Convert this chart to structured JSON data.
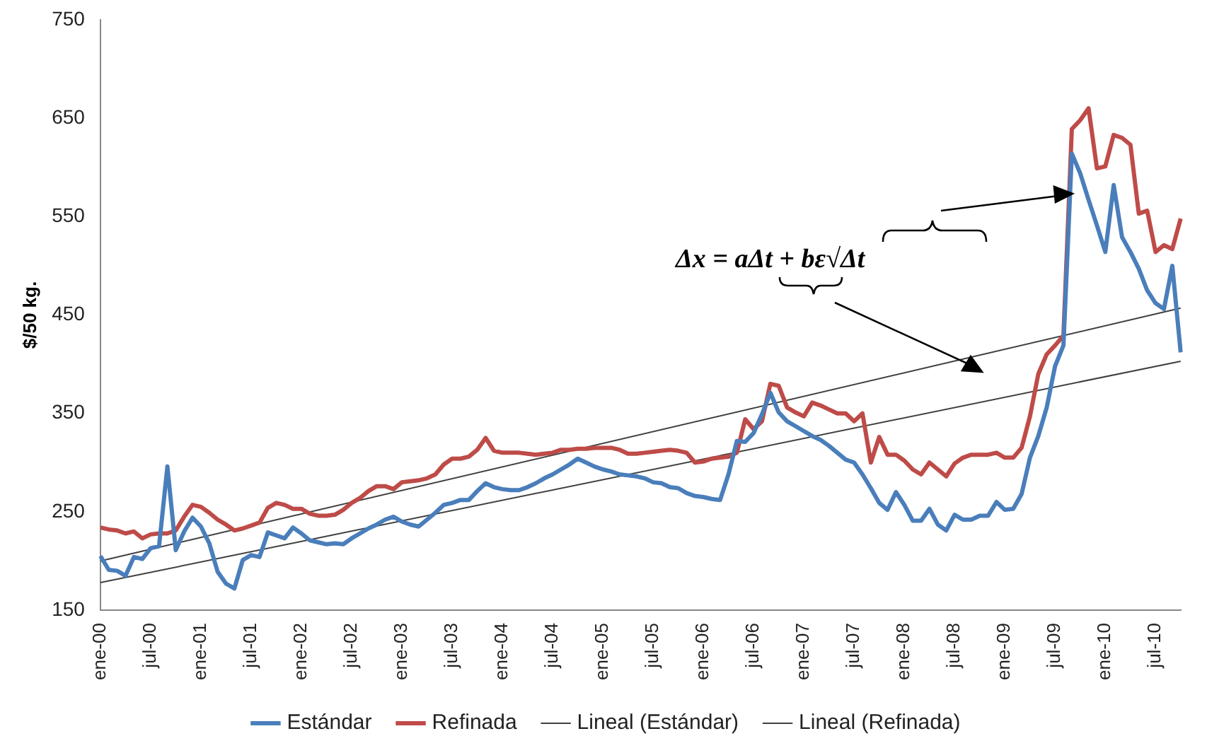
{
  "chart_data": {
    "type": "line",
    "ylabel": "$/50 kg.",
    "ylim": [
      150,
      750
    ],
    "yticks": [
      150,
      250,
      350,
      450,
      550,
      650,
      750
    ],
    "grid": false,
    "legend": "bottom",
    "marker": "none",
    "line_style": "solid",
    "annotations": [
      "Δx = aΔt + bε√Δt"
    ],
    "categories": [
      "ene-00",
      null,
      null,
      null,
      null,
      null,
      "jul-00",
      null,
      null,
      null,
      null,
      null,
      "ene-01",
      null,
      null,
      null,
      null,
      null,
      "jul-01",
      null,
      null,
      null,
      null,
      null,
      "ene-02",
      null,
      null,
      null,
      null,
      null,
      "jul-02",
      null,
      null,
      null,
      null,
      null,
      "ene-03",
      null,
      null,
      null,
      null,
      null,
      "jul-03",
      null,
      null,
      null,
      null,
      null,
      "ene-04",
      null,
      null,
      null,
      null,
      null,
      "jul-04",
      null,
      null,
      null,
      null,
      null,
      "ene-05",
      null,
      null,
      null,
      null,
      null,
      "jul-05",
      null,
      null,
      null,
      null,
      null,
      "ene-06",
      null,
      null,
      null,
      null,
      null,
      "jul-06",
      null,
      null,
      null,
      null,
      null,
      "ene-07",
      null,
      null,
      null,
      null,
      null,
      "jul-07",
      null,
      null,
      null,
      null,
      null,
      "ene-08",
      null,
      null,
      null,
      null,
      null,
      "jul-08",
      null,
      null,
      null,
      null,
      null,
      "ene-09",
      null,
      null,
      null,
      null,
      null,
      "jul-09",
      null,
      null,
      null,
      null,
      null,
      "ene-10",
      null,
      null,
      null,
      null,
      null,
      "jul-10",
      null,
      null,
      null
    ],
    "series": [
      {
        "name": "Estándar",
        "color": "#4a7ebb",
        "values": [
          205,
          191,
          190,
          185,
          204,
          202,
          213,
          215,
          296,
          211,
          230,
          244,
          235,
          218,
          189,
          177,
          172,
          201,
          206,
          204,
          229,
          226,
          223,
          234,
          228,
          221,
          219,
          217,
          218,
          217,
          223,
          228,
          233,
          237,
          242,
          245,
          240,
          237,
          235,
          242,
          249,
          257,
          259,
          262,
          262,
          271,
          279,
          275,
          273,
          272,
          272,
          275,
          279,
          284,
          288,
          293,
          298,
          304,
          300,
          296,
          293,
          291,
          288,
          287,
          286,
          284,
          280,
          279,
          275,
          274,
          269,
          266,
          265,
          263,
          262,
          288,
          322,
          321,
          330,
          349,
          371,
          351,
          342,
          337,
          332,
          327,
          323,
          317,
          310,
          303,
          300,
          288,
          274,
          259,
          252,
          270,
          257,
          241,
          241,
          253,
          237,
          231,
          247,
          242,
          242,
          246,
          246,
          260,
          252,
          253,
          268,
          305,
          327,
          356,
          398,
          419,
          614,
          594,
          567,
          541,
          514,
          582,
          529,
          514,
          497,
          475,
          462,
          456,
          500,
          412
        ]
      },
      {
        "name": "Refinada",
        "color": "#be4b48",
        "values": [
          234,
          232,
          231,
          228,
          230,
          223,
          227,
          228,
          228,
          231,
          245,
          257,
          255,
          249,
          242,
          237,
          231,
          233,
          236,
          239,
          254,
          259,
          257,
          253,
          253,
          248,
          246,
          246,
          247,
          252,
          259,
          264,
          271,
          276,
          276,
          273,
          280,
          281,
          282,
          284,
          288,
          298,
          304,
          304,
          306,
          313,
          325,
          312,
          310,
          310,
          310,
          309,
          308,
          309,
          310,
          313,
          313,
          314,
          314,
          315,
          315,
          315,
          313,
          309,
          309,
          310,
          311,
          312,
          313,
          312,
          310,
          300,
          301,
          304,
          305,
          306,
          310,
          344,
          334,
          342,
          380,
          378,
          356,
          351,
          347,
          361,
          358,
          354,
          350,
          350,
          342,
          350,
          300,
          326,
          308,
          308,
          302,
          293,
          288,
          300,
          293,
          286,
          299,
          305,
          308,
          308,
          308,
          310,
          305,
          305,
          315,
          347,
          390,
          410,
          419,
          429,
          639,
          648,
          660,
          599,
          601,
          633,
          630,
          623,
          553,
          556,
          514,
          521,
          517,
          548
        ]
      },
      {
        "name": "Lineal (Estándar)",
        "type": "line",
        "color": "#404040",
        "values": [
          178,
          null,
          null,
          null,
          null,
          null,
          null,
          null,
          null,
          null,
          null,
          null,
          null,
          null,
          null,
          null,
          null,
          null,
          null,
          null,
          null,
          null,
          null,
          null,
          null,
          null,
          null,
          null,
          null,
          null,
          null,
          null,
          null,
          null,
          null,
          null,
          null,
          null,
          null,
          null,
          null,
          null,
          null,
          null,
          null,
          null,
          null,
          null,
          null,
          null,
          null,
          null,
          null,
          null,
          null,
          null,
          null,
          null,
          null,
          null,
          null,
          null,
          null,
          null,
          null,
          null,
          null,
          null,
          null,
          null,
          null,
          null,
          null,
          null,
          null,
          null,
          null,
          null,
          null,
          null,
          null,
          null,
          null,
          null,
          null,
          null,
          null,
          null,
          null,
          null,
          null,
          null,
          null,
          null,
          null,
          null,
          null,
          null,
          null,
          null,
          null,
          null,
          null,
          null,
          null,
          null,
          null,
          null,
          null,
          null,
          null,
          null,
          null,
          null,
          null,
          null,
          null,
          null,
          null,
          null,
          null,
          null,
          null,
          null,
          null,
          null,
          null,
          null,
          null,
          403
        ]
      },
      {
        "name": "Lineal (Refinada)",
        "type": "line",
        "color": "#404040",
        "values": [
          200,
          null,
          null,
          null,
          null,
          null,
          null,
          null,
          null,
          null,
          null,
          null,
          null,
          null,
          null,
          null,
          null,
          null,
          null,
          null,
          null,
          null,
          null,
          null,
          null,
          null,
          null,
          null,
          null,
          null,
          null,
          null,
          null,
          null,
          null,
          null,
          null,
          null,
          null,
          null,
          null,
          null,
          null,
          null,
          null,
          null,
          null,
          null,
          null,
          null,
          null,
          null,
          null,
          null,
          null,
          null,
          null,
          null,
          null,
          null,
          null,
          null,
          null,
          null,
          null,
          null,
          null,
          null,
          null,
          null,
          null,
          null,
          null,
          null,
          null,
          null,
          null,
          null,
          null,
          null,
          null,
          null,
          null,
          null,
          null,
          null,
          null,
          null,
          null,
          null,
          null,
          null,
          null,
          null,
          null,
          null,
          null,
          null,
          null,
          null,
          null,
          null,
          null,
          null,
          null,
          null,
          null,
          null,
          null,
          null,
          null,
          null,
          null,
          null,
          null,
          null,
          null,
          null,
          null,
          null,
          null,
          null,
          null,
          null,
          null,
          null,
          null,
          null,
          null,
          457
        ]
      }
    ]
  }
}
